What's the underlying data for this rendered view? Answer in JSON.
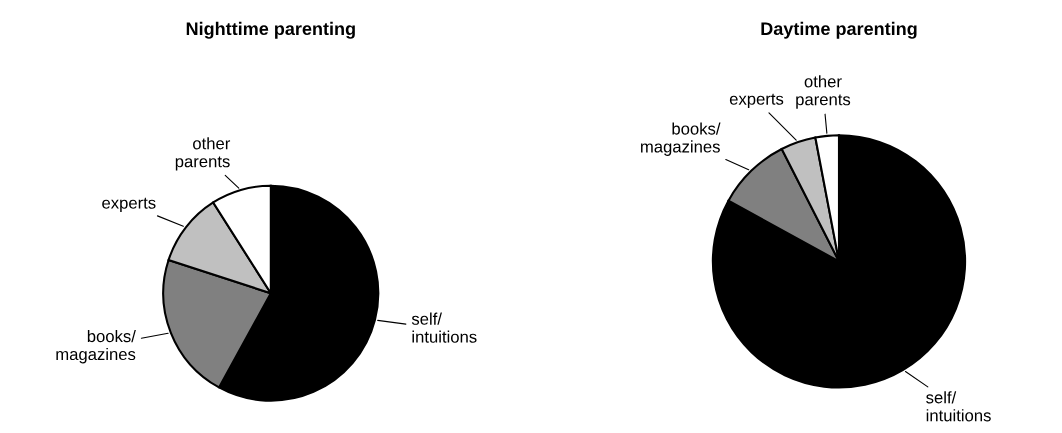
{
  "chart_data": [
    {
      "type": "pie",
      "title": "Nighttime parenting",
      "categories": [
        "self/\nintuitions",
        "books/\nmagazines",
        "experts",
        "other\nparents"
      ],
      "values": [
        58,
        22,
        11,
        9
      ],
      "colors": [
        "#000000",
        "#808080",
        "#c0c0c0",
        "#ffffff"
      ]
    },
    {
      "type": "pie",
      "title": "Daytime parenting",
      "categories": [
        "self/\nintuitions",
        "books/\nmagazines",
        "experts",
        "other\nparents"
      ],
      "values": [
        83,
        9.5,
        4.5,
        3
      ],
      "colors": [
        "#000000",
        "#808080",
        "#c0c0c0",
        "#ffffff"
      ]
    }
  ]
}
